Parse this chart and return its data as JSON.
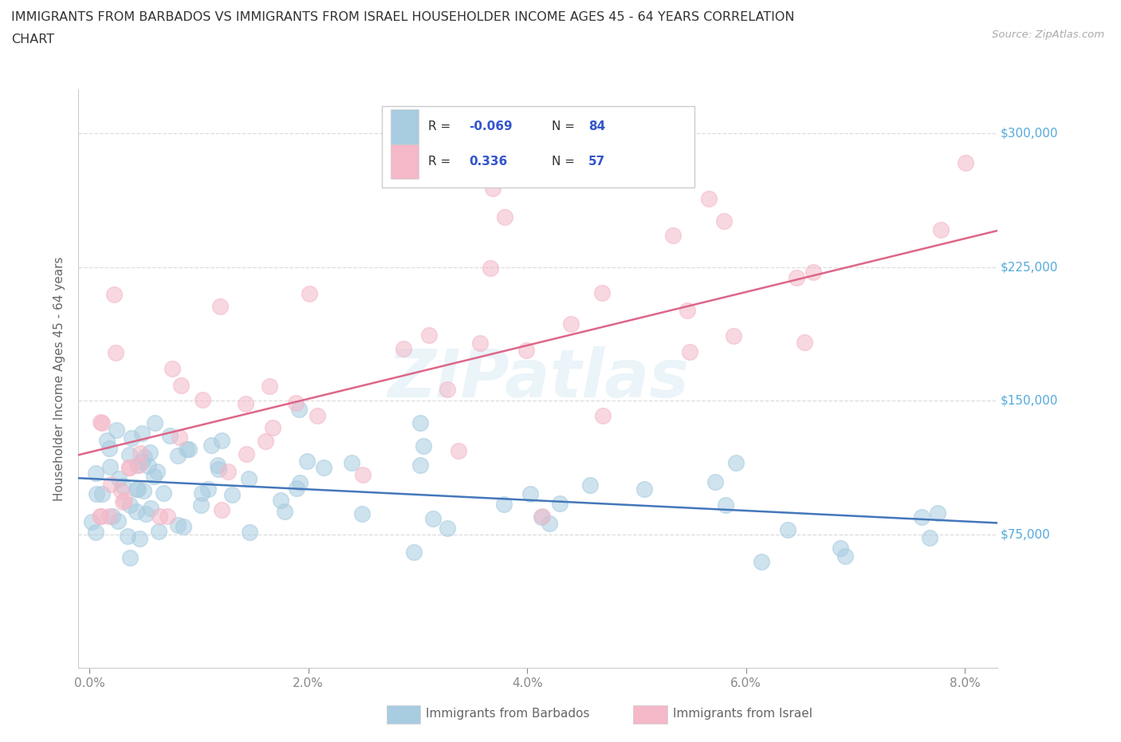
{
  "title_line1": "IMMIGRANTS FROM BARBADOS VS IMMIGRANTS FROM ISRAEL HOUSEHOLDER INCOME AGES 45 - 64 YEARS CORRELATION",
  "title_line2": "CHART",
  "source_text": "Source: ZipAtlas.com",
  "ylabel": "Householder Income Ages 45 - 64 years",
  "xlabel_ticks": [
    "0.0%",
    "2.0%",
    "4.0%",
    "6.0%",
    "8.0%"
  ],
  "xlabel_vals": [
    0.0,
    0.02,
    0.04,
    0.06,
    0.08
  ],
  "ytick_labels": [
    "$75,000",
    "$150,000",
    "$225,000",
    "$300,000"
  ],
  "ytick_vals": [
    75000,
    150000,
    225000,
    300000
  ],
  "y_min": 0,
  "y_max": 325000,
  "x_min": -0.001,
  "x_max": 0.083,
  "barbados_R": -0.069,
  "barbados_N": 84,
  "israel_R": 0.336,
  "israel_N": 57,
  "barbados_color": "#a8cce0",
  "israel_color": "#f4b8c8",
  "barbados_line_color": "#4477bb",
  "israel_line_color": "#dd6688",
  "legend_R_color": "#3355cc",
  "watermark": "ZIPatlas",
  "background_color": "#ffffff",
  "grid_color": "#dddddd"
}
